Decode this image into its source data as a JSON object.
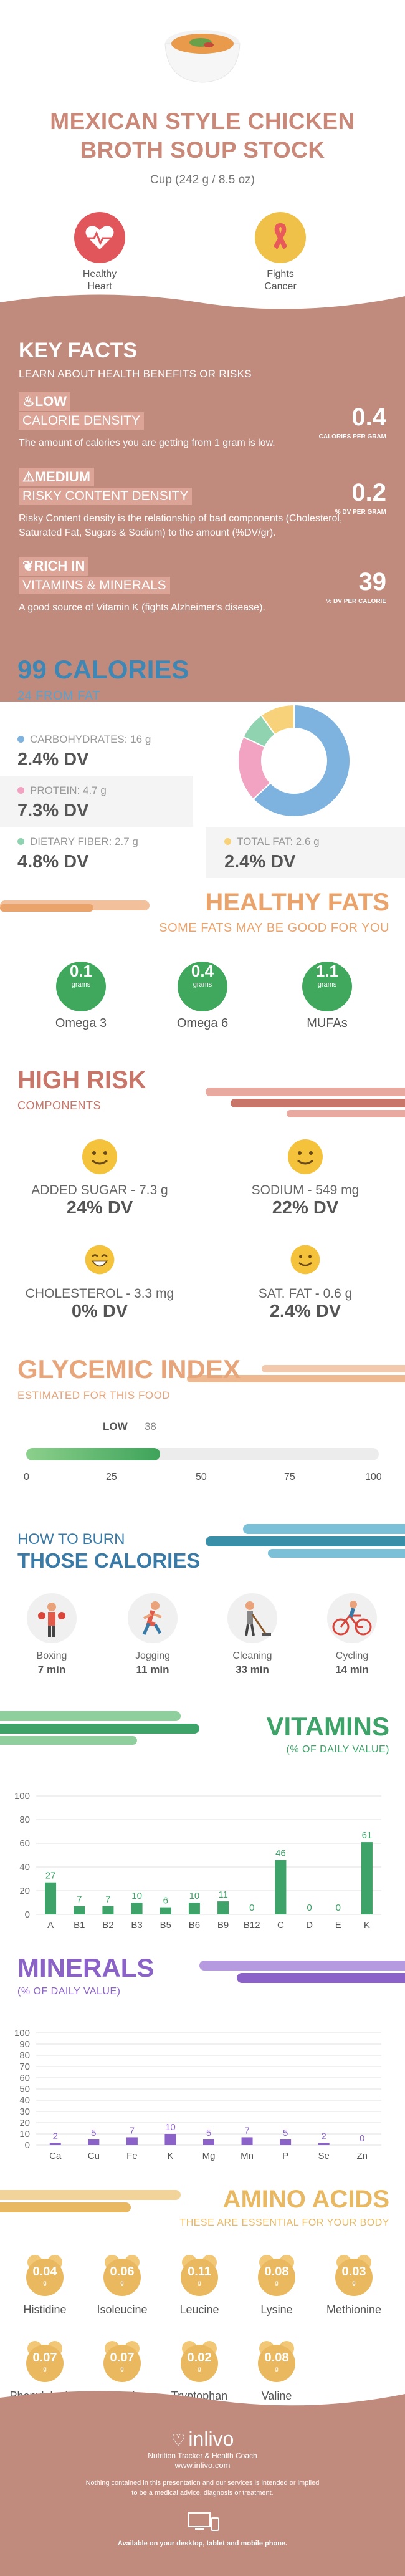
{
  "header": {
    "title_line1": "MEXICAN STYLE CHICKEN",
    "title_line2": "BROTH SOUP STOCK",
    "serving": "Cup (242 g / 8.5 oz)",
    "benefits": [
      {
        "label1": "Healthy",
        "label2": "Heart",
        "icon": "heart-pulse-icon",
        "color": "#e0565a"
      },
      {
        "label1": "Fights",
        "label2": "Cancer",
        "icon": "cancer-ribbon-icon",
        "color": "#f0c149"
      }
    ]
  },
  "key_facts": {
    "title": "KEY FACTS",
    "subtitle": "LEARN ABOUT HEALTH BENEFITS OR RISKS",
    "items": [
      {
        "tag": "LOW",
        "tag2": "CALORIE DENSITY",
        "value": "0.4",
        "unit": "CALORIES PER GRAM",
        "desc": "The amount of calories you are getting from 1 gram is low."
      },
      {
        "tag": "MEDIUM",
        "tag2": "RISKY CONTENT DENSITY",
        "value": "0.2",
        "unit": "% DV PER GRAM",
        "desc": "Risky Content density is the relationship of bad components (Cholesterol, Saturated Fat, Sugars & Sodium) to the amount (%DV/gr)."
      },
      {
        "tag": "RICH  IN",
        "tag2": "VITAMINS & MINERALS",
        "value": "39",
        "unit": "% DV PER CALORIE",
        "desc": "A good source of Vitamin K (fights Alzheimer's disease)."
      }
    ]
  },
  "calories": {
    "title": "99 CALORIES",
    "subtitle": "24 FROM FAT",
    "nutrients": [
      {
        "label": "CARBOHYDRATES: 16 g",
        "dv": "2.4% DV",
        "color": "#7fb3df"
      },
      {
        "label": "PROTEIN: 4.7 g",
        "dv": "7.3% DV",
        "color": "#f2a3c2"
      },
      {
        "label": "DIETARY FIBER: 2.7 g",
        "dv": "4.8% DV",
        "color": "#8fd3b1"
      },
      {
        "label": "TOTAL FAT: 2.6 g",
        "dv": "2.4% DV",
        "color": "#f7d27a"
      }
    ],
    "donut": [
      {
        "name": "carbohydrates",
        "value": 63,
        "color": "#7fb3df"
      },
      {
        "name": "protein",
        "value": 19,
        "color": "#f2a3c2"
      },
      {
        "name": "fiber",
        "value": 8,
        "color": "#8fd3b1"
      },
      {
        "name": "fat",
        "value": 10,
        "color": "#f7d27a"
      }
    ]
  },
  "healthy_fats": {
    "title": "HEALTHY FATS",
    "subtitle": "SOME FATS MAY BE GOOD FOR YOU",
    "items": [
      {
        "value": "0.1",
        "unit": "grams",
        "label": "Omega 3"
      },
      {
        "value": "0.4",
        "unit": "grams",
        "label": "Omega 6"
      },
      {
        "value": "1.1",
        "unit": "grams",
        "label": "MUFAs"
      }
    ]
  },
  "high_risk": {
    "title": "HIGH RISK",
    "subtitle": "COMPONENTS",
    "items": [
      {
        "label": "ADDED SUGAR - 7.3 g",
        "dv": "24% DV"
      },
      {
        "label": "SODIUM - 549 mg",
        "dv": "22% DV"
      },
      {
        "label": "CHOLESTEROL - 3.3 mg",
        "dv": "0% DV"
      },
      {
        "label": "SAT. FAT - 0.6 g",
        "dv": "2.4% DV"
      }
    ]
  },
  "glycemic": {
    "title": "GLYCEMIC INDEX",
    "subtitle": "ESTIMATED FOR THIS FOOD",
    "level": "LOW",
    "value": 38,
    "value_label": "38",
    "max": 100,
    "ticks": [
      "0",
      "25",
      "50",
      "75",
      "100"
    ]
  },
  "burn": {
    "title1": "HOW TO BURN",
    "title2": "THOSE CALORIES",
    "activities": [
      {
        "name": "Boxing",
        "time": "7 min",
        "icon": "boxing-icon"
      },
      {
        "name": "Jogging",
        "time": "11 min",
        "icon": "jogging-icon"
      },
      {
        "name": "Cleaning",
        "time": "33 min",
        "icon": "cleaning-icon"
      },
      {
        "name": "Cycling",
        "time": "14 min",
        "icon": "cycling-icon"
      }
    ]
  },
  "chart_data": [
    {
      "type": "bar",
      "title": "VITAMINS",
      "subtitle": "(% OF DAILY VALUE)",
      "categories": [
        "A",
        "B1",
        "B2",
        "B3",
        "B5",
        "B6",
        "B9",
        "B12",
        "C",
        "D",
        "E",
        "K"
      ],
      "values": [
        27,
        7,
        7,
        10,
        6,
        10,
        11,
        0,
        46,
        0,
        0,
        61
      ],
      "ylim": [
        0,
        100
      ],
      "yticks": [
        "0",
        "20",
        "40",
        "60",
        "80",
        "100"
      ],
      "color": "#3ea368"
    },
    {
      "type": "bar",
      "title": "MINERALS",
      "subtitle": "(% OF DAILY VALUE)",
      "categories": [
        "Ca",
        "Cu",
        "Fe",
        "K",
        "Mg",
        "Mn",
        "P",
        "Se",
        "Zn"
      ],
      "values": [
        2,
        5,
        7,
        10,
        5,
        7,
        5,
        2,
        0
      ],
      "ylim": [
        0,
        100
      ],
      "yticks": [
        "0",
        "10",
        "20",
        "30",
        "40",
        "50",
        "60",
        "70",
        "80",
        "90",
        "100"
      ],
      "color": "#8b62c8"
    }
  ],
  "amino": {
    "title": "AMINO ACIDS",
    "subtitle": "THESE ARE ESSENTIAL FOR YOUR BODY",
    "unit": "g",
    "items": [
      {
        "value": "0.04",
        "name": "Histidine"
      },
      {
        "value": "0.06",
        "name": "Isoleucine"
      },
      {
        "value": "0.11",
        "name": "Leucine"
      },
      {
        "value": "0.08",
        "name": "Lysine"
      },
      {
        "value": "0.03",
        "name": "Methionine"
      },
      {
        "value": "0.07",
        "name": "Phenylalanine"
      },
      {
        "value": "0.07",
        "name": "Threonine"
      },
      {
        "value": "0.02",
        "name": "Tryptophan"
      },
      {
        "value": "0.08",
        "name": "Valine"
      }
    ]
  },
  "footer": {
    "brand": "inlivo",
    "tagline": "Nutrition Tracker & Health Coach",
    "url": "www.inlivo.com",
    "disclaimer1": "Nothing contained in this presentation and our services is intended or implied",
    "disclaimer2": "to be a medical advice, diagnosis or treatment.",
    "available": "Available on your desktop, tablet and mobile phone."
  }
}
